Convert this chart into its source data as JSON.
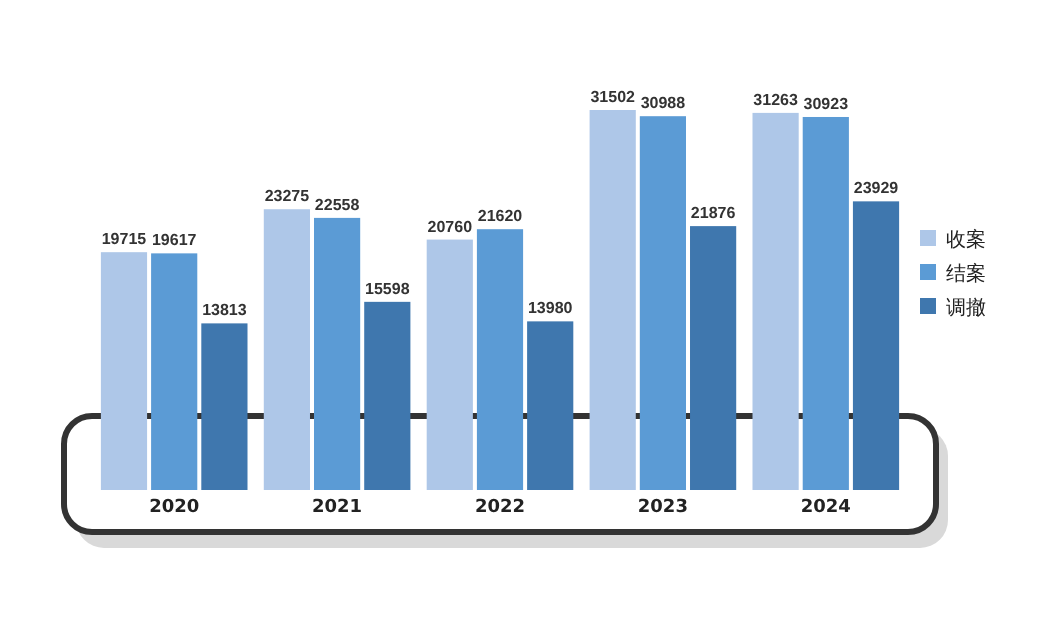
{
  "chart_data": {
    "type": "bar",
    "categories": [
      "2020",
      "2021",
      "2022",
      "2023",
      "2024"
    ],
    "series": [
      {
        "name": "收案",
        "color": "#aec7e8",
        "values": [
          19715,
          23275,
          20760,
          31502,
          31263
        ]
      },
      {
        "name": "结案",
        "color": "#5b9bd5",
        "values": [
          19617,
          22558,
          21620,
          30988,
          30923
        ]
      },
      {
        "name": "调撤",
        "color": "#3f77ae",
        "values": [
          13813,
          15598,
          13980,
          21876,
          23929
        ]
      }
    ],
    "data_labels": true,
    "legend": "right",
    "grid": false
  }
}
